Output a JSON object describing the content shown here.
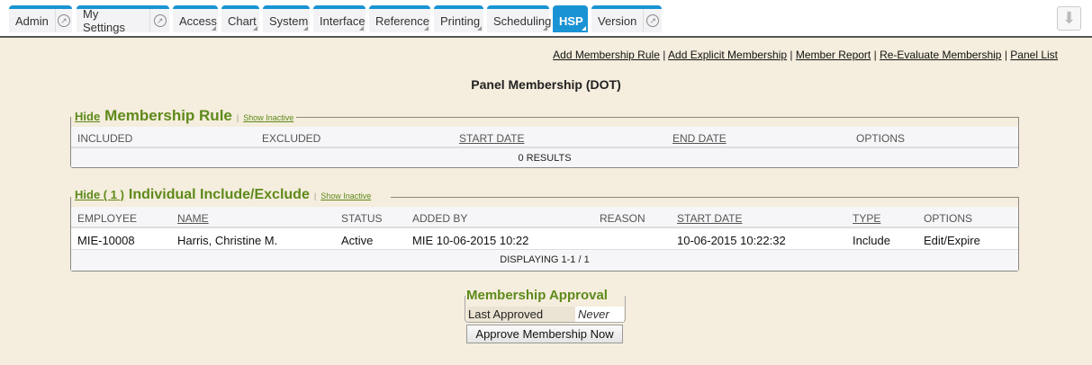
{
  "tabs": [
    {
      "label": "Admin",
      "external": true
    },
    {
      "label": "My Settings",
      "external": true
    },
    {
      "label": "Access"
    },
    {
      "label": "Chart"
    },
    {
      "label": "System"
    },
    {
      "label": "Interface"
    },
    {
      "label": "Reference"
    },
    {
      "label": "Printing"
    },
    {
      "label": "Scheduling"
    },
    {
      "label": "HSP",
      "active": true
    },
    {
      "label": "Version",
      "external": true
    }
  ],
  "download_icon": "arrow-down-icon",
  "links": [
    "Add Membership Rule",
    "Add Explicit Membership",
    "Member Report",
    "Re-Evaluate Membership",
    "Panel List"
  ],
  "link_separator": "|",
  "page_title": "Panel Membership (DOT)",
  "rule": {
    "hide": "Hide",
    "title": "Membership Rule",
    "show_inactive": "Show Inactive",
    "columns": [
      "INCLUDED",
      "EXCLUDED",
      "START DATE",
      "END DATE",
      "OPTIONS"
    ],
    "footer": "0 RESULTS"
  },
  "individual": {
    "hide": "Hide ( 1 )",
    "title": "Individual Include/Exclude",
    "show_inactive": "Show Inactive",
    "columns": [
      "EMPLOYEE",
      "NAME",
      "STATUS",
      "ADDED BY",
      "REASON",
      "START DATE",
      "TYPE",
      "OPTIONS"
    ],
    "rows": [
      {
        "employee": "MIE-10008",
        "name": "Harris, Christine M.",
        "status": "Active",
        "added_by": "MIE 10-06-2015 10:22",
        "reason": "",
        "start_date": "10-06-2015 10:22:32",
        "type": "Include",
        "options": "Edit/Expire"
      }
    ],
    "footer": "DISPLAYING 1-1 / 1"
  },
  "approval": {
    "title": "Membership Approval",
    "label": "Last Approved",
    "value": "Never",
    "button": "Approve Membership Now"
  }
}
